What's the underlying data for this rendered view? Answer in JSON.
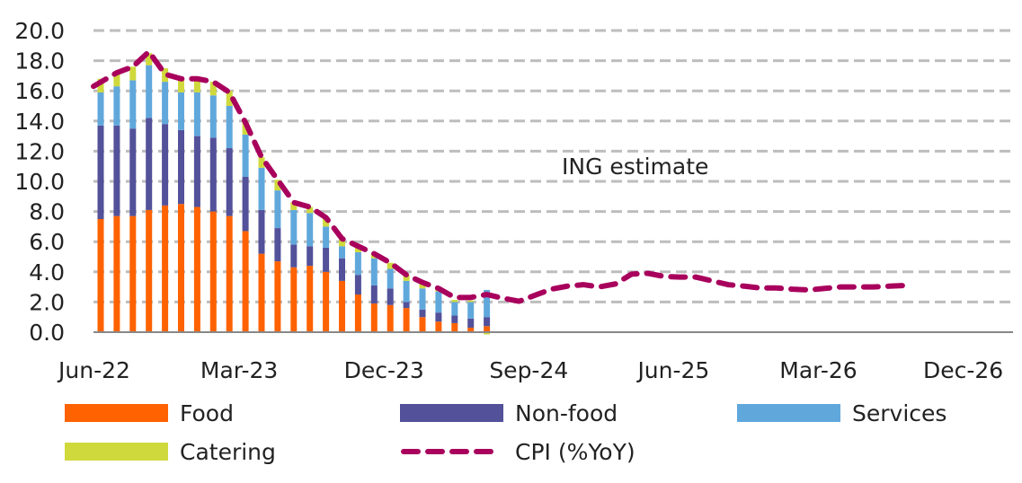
{
  "chart_data": {
    "type": "bar",
    "stacked": true,
    "title": "",
    "xlabel": "",
    "ylabel": "",
    "ylim": [
      0,
      20
    ],
    "yticks": [
      "0.0",
      "2.0",
      "4.0",
      "6.0",
      "8.0",
      "10.0",
      "12.0",
      "14.0",
      "16.0",
      "18.0",
      "20.0"
    ],
    "grid": true,
    "x_start": "Jun-22",
    "x_end": "Dec-26",
    "xtick_labels": [
      "Jun-22",
      "Mar-23",
      "Dec-23",
      "Sep-24",
      "Jun-25",
      "Mar-26",
      "Dec-26"
    ],
    "annotation": "ING estimate",
    "legend_placement": "bottom",
    "bar_months": [
      "Jun-22",
      "Jul-22",
      "Aug-22",
      "Sep-22",
      "Oct-22",
      "Nov-22",
      "Dec-22",
      "Jan-23",
      "Feb-23",
      "Mar-23",
      "Apr-23",
      "May-23",
      "Jun-23",
      "Jul-23",
      "Aug-23",
      "Sep-23",
      "Oct-23",
      "Nov-23",
      "Dec-23",
      "Jan-24",
      "Feb-24",
      "Mar-24",
      "Apr-24",
      "May-24",
      "Jun-24"
    ],
    "series": [
      {
        "name": "Food",
        "color": "#ff6200",
        "values": [
          7.5,
          7.7,
          7.7,
          8.1,
          8.4,
          8.5,
          8.3,
          8.0,
          7.7,
          6.7,
          5.2,
          4.7,
          4.3,
          4.4,
          4.0,
          3.4,
          2.5,
          1.9,
          1.8,
          1.6,
          1.0,
          0.7,
          0.6,
          0.3,
          0.4
        ]
      },
      {
        "name": "Non-food",
        "color": "#525199",
        "values": [
          6.2,
          6.0,
          5.8,
          6.1,
          5.4,
          4.9,
          4.7,
          4.9,
          4.5,
          3.6,
          2.9,
          2.2,
          1.5,
          1.3,
          1.6,
          1.5,
          1.3,
          1.2,
          1.1,
          0.4,
          0.5,
          0.6,
          0.5,
          0.6,
          0.6
        ]
      },
      {
        "name": "Services",
        "color": "#60a8dc",
        "values": [
          2.2,
          2.6,
          3.2,
          3.5,
          2.8,
          2.5,
          2.9,
          2.8,
          2.8,
          2.8,
          2.8,
          2.5,
          2.3,
          2.2,
          1.4,
          0.8,
          1.5,
          1.8,
          1.3,
          1.4,
          1.4,
          1.4,
          0.9,
          1.1,
          1.8
        ]
      },
      {
        "name": "Catering",
        "color": "#d0d93c",
        "values": [
          0.9,
          0.9,
          0.9,
          0.8,
          0.9,
          0.9,
          0.9,
          0.9,
          1.0,
          0.9,
          0.7,
          0.7,
          0.5,
          0.4,
          0.5,
          0.5,
          0.35,
          0.3,
          0.4,
          0.4,
          0.4,
          0.2,
          0.14,
          0.1,
          -0.15
        ]
      }
    ],
    "line": {
      "name": "CPI (%YoY)",
      "color": "#a8005c",
      "style": "dashed",
      "months_from": "Jun-22",
      "months_to": "Aug-26",
      "values": [
        16.3,
        17.2,
        17.6,
        18.6,
        17.1,
        16.8,
        16.8,
        16.6,
        15.9,
        13.9,
        11.6,
        10.1,
        8.6,
        8.3,
        7.6,
        6.2,
        5.7,
        5.2,
        4.6,
        3.8,
        3.3,
        2.9,
        2.3,
        2.3,
        2.5,
        2.25,
        2.05,
        2.45,
        2.85,
        3.05,
        3.15,
        3.0,
        3.2,
        3.85,
        3.9,
        3.7,
        3.65,
        3.65,
        3.4,
        3.15,
        3.05,
        2.93,
        2.93,
        2.85,
        2.8,
        2.9,
        3.0,
        3.0,
        3.0,
        3.05,
        3.1
      ]
    },
    "legend": [
      {
        "label": "Food",
        "kind": "bar",
        "color": "#ff6200"
      },
      {
        "label": "Non-food",
        "kind": "bar",
        "color": "#525199"
      },
      {
        "label": "Services",
        "kind": "bar",
        "color": "#60a8dc"
      },
      {
        "label": "Catering",
        "kind": "bar",
        "color": "#d0d93c"
      },
      {
        "label": "CPI (%YoY)",
        "kind": "line",
        "color": "#a8005c"
      }
    ]
  }
}
